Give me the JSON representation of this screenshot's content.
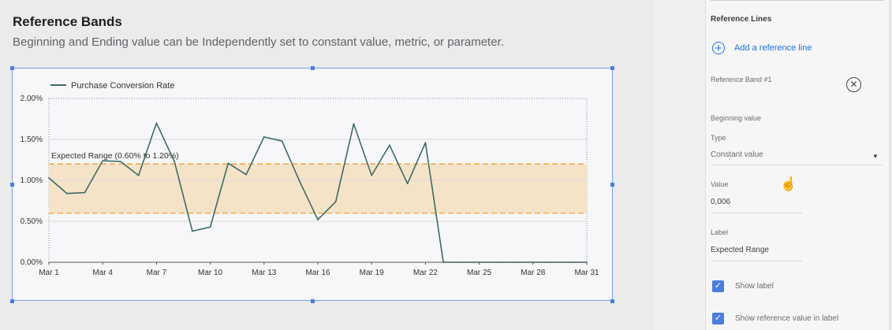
{
  "page": {
    "title": "Reference Bands",
    "subtitle": "Beginning and Ending value can be Independently set to constant value, metric, or parameter."
  },
  "chart_data": {
    "type": "line",
    "legend": "Purchase Conversion Rate",
    "legend_position": "top-left",
    "y_ticks": [
      "2.00%",
      "1.50%",
      "1.00%",
      "0.50%",
      "0.00%"
    ],
    "ylim": [
      0,
      2.0
    ],
    "x_ticks": [
      "Mar 1",
      "Mar 4",
      "Mar 7",
      "Mar 10",
      "Mar 13",
      "Mar 16",
      "Mar 19",
      "Mar 22",
      "Mar 25",
      "Mar 28",
      "Mar 31"
    ],
    "x": [
      1,
      2,
      3,
      4,
      5,
      6,
      7,
      8,
      9,
      10,
      11,
      12,
      13,
      14,
      15,
      16,
      17,
      18,
      19,
      20,
      21,
      22,
      23,
      24,
      25,
      26,
      27,
      28,
      29,
      30,
      31
    ],
    "series": [
      {
        "name": "Purchase Conversion Rate",
        "values": [
          1.03,
          0.84,
          0.85,
          1.24,
          1.23,
          1.06,
          1.7,
          1.23,
          0.38,
          0.43,
          1.21,
          1.07,
          1.53,
          1.48,
          0.98,
          0.52,
          0.74,
          1.69,
          1.06,
          1.43,
          0.96,
          1.46,
          0.0,
          0.0,
          0.0,
          0.0,
          0.0,
          0.0,
          0.0,
          0.0,
          0.0
        ]
      }
    ],
    "band": {
      "from": 0.6,
      "to": 1.2,
      "label": "Expected Range (0.60% to 1.20%)"
    },
    "colors": {
      "line": "#3d6b63",
      "band_fill": "#f5e3c8",
      "band_line": "#f0a030",
      "grid": "#d9d9d9"
    }
  },
  "panel": {
    "heading": "Reference Lines",
    "add_label": "Add a reference line",
    "band_name": "Reference Band #1",
    "beginning_label": "Beginning value",
    "type_label": "Type",
    "type_value": "Constant value",
    "value_label": "Value",
    "value_value": "0,006",
    "label_label": "Label",
    "label_value": "Expected Range",
    "show_label": "Show label",
    "show_ref_value": "Show reference value in label",
    "icons": {
      "add": "add-circle-icon",
      "close": "close-circle-icon",
      "dropdown": "chevron-down-icon",
      "cursor": "hand-cursor-icon",
      "check": "check-icon"
    }
  }
}
